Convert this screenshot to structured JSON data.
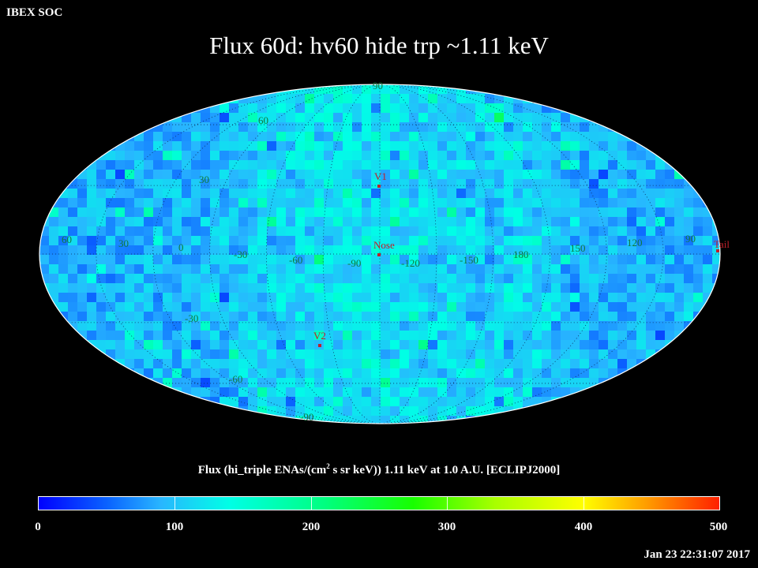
{
  "header": {
    "corner_label": "IBEX SOC",
    "title": "Flux   60d: hv60 hide trp ~1.11 keV"
  },
  "map": {
    "projection": "Mollweide",
    "frame": "ECLIPJ2000",
    "palette": {
      "low": "#0000ff",
      "mid": "#00ffe6",
      "high": "#ff2000",
      "outline": "#ffffff"
    },
    "latitude_labels": [
      "90",
      "60",
      "30",
      "-30",
      "-60",
      "-90"
    ],
    "longitude_labels": [
      "60",
      "30",
      "0",
      "-30",
      "-60",
      "-90",
      "-120",
      "-150",
      "180",
      "150",
      "120",
      "90"
    ],
    "markers": [
      {
        "label": "V1",
        "lon": -105,
        "lat": 34
      },
      {
        "label": "Nose",
        "lon": -105,
        "lat": 5
      },
      {
        "label": "V2",
        "lon": -71,
        "lat": -30
      },
      {
        "label": "Tail",
        "lon": 75,
        "lat": -5
      }
    ]
  },
  "colorbar": {
    "title_prefix": "Flux (hi_triple ENAs/(cm",
    "title_sup": "2",
    "title_suffix": " s sr keV))  1.11 keV at 1.0 A.U. [ECLIPJ2000]",
    "min": 0,
    "max": 500,
    "tick_labels": [
      "0",
      "100",
      "200",
      "300",
      "400",
      "500"
    ]
  },
  "footer": {
    "timestamp": "Jan 23 22:31:07 2017"
  }
}
